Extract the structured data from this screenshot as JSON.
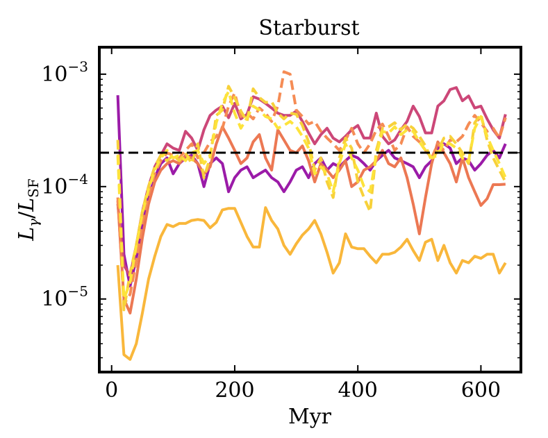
{
  "chart_data": {
    "type": "line",
    "title": "Starburst",
    "xlabel": "Myr",
    "ylabel": "L_γ/L_SF",
    "ylabel_main": "L",
    "ylabel_sub1": "γ",
    "ylabel_sub2": "SF",
    "xlim": [
      -20,
      665
    ],
    "ylim_log10": [
      -5.65,
      -2.76
    ],
    "xscale": "linear",
    "yscale": "log",
    "x_ticks": [
      0,
      200,
      400,
      600
    ],
    "x_tick_labels": [
      "0",
      "200",
      "400",
      "600"
    ],
    "y_ticks_log10": [
      -5,
      -4,
      -3
    ],
    "y_tick_labels": [
      {
        "base": "10",
        "exp": "−5"
      },
      {
        "base": "10",
        "exp": "−4"
      },
      {
        "base": "10",
        "exp": "−3"
      }
    ],
    "reference_line": {
      "y": 0.0002,
      "style": "dashed",
      "color": "#000000"
    },
    "series": [
      {
        "name": "purple-solid",
        "color": "#9b1ba8",
        "dash": false,
        "x": [
          10,
          20,
          30,
          40,
          50,
          60,
          70,
          80,
          90,
          100,
          110,
          120,
          130,
          140,
          150,
          160,
          170,
          180,
          190,
          200,
          210,
          220,
          230,
          240,
          250,
          260,
          270,
          280,
          290,
          300,
          310,
          320,
          330,
          340,
          350,
          360,
          370,
          380,
          390,
          400,
          410,
          420,
          430,
          440,
          450,
          460,
          470,
          480,
          490,
          500,
          510,
          520,
          530,
          540,
          550,
          560,
          570,
          580,
          590,
          600,
          610,
          620,
          630,
          640
        ],
        "y": [
          0.00065,
          2.5e-05,
          1.3e-05,
          2.3e-05,
          4.5e-05,
          8e-05,
          0.00012,
          0.00016,
          0.00018,
          0.00013,
          0.00016,
          0.00018,
          0.00019,
          0.00016,
          0.0001,
          0.00016,
          0.00018,
          0.00016,
          9e-05,
          0.00012,
          0.00014,
          0.00015,
          0.00012,
          0.00013,
          0.00014,
          0.00012,
          0.00011,
          9e-05,
          0.00011,
          0.00014,
          0.00015,
          0.00012,
          0.00016,
          0.00018,
          0.00014,
          0.00016,
          0.00015,
          0.00017,
          0.00019,
          0.00018,
          0.00016,
          0.00014,
          0.00017,
          0.00019,
          0.00021,
          0.00018,
          0.00017,
          0.00016,
          0.00015,
          0.00012,
          0.00015,
          0.00017,
          0.00022,
          0.00024,
          0.00022,
          0.00016,
          0.00018,
          0.00017,
          0.00014,
          0.00016,
          0.00019,
          0.00021,
          0.00018,
          0.00024
        ]
      },
      {
        "name": "magenta-solid",
        "color": "#cc4778",
        "dash": false,
        "x": [
          10,
          20,
          30,
          40,
          50,
          60,
          70,
          80,
          90,
          100,
          110,
          120,
          130,
          140,
          150,
          160,
          170,
          180,
          190,
          200,
          210,
          220,
          230,
          240,
          250,
          260,
          270,
          280,
          290,
          300,
          310,
          320,
          330,
          340,
          350,
          360,
          370,
          380,
          390,
          400,
          410,
          420,
          430,
          440,
          450,
          460,
          470,
          480,
          490,
          500,
          510,
          520,
          530,
          540,
          550,
          560,
          570,
          580,
          590,
          600,
          610,
          620,
          630,
          640
        ],
        "y": [
          7e-05,
          2e-05,
          1.6e-05,
          3e-05,
          6e-05,
          0.0001,
          0.00015,
          0.00019,
          0.00024,
          0.00022,
          0.00021,
          0.00031,
          0.00027,
          0.00021,
          0.00032,
          0.00043,
          0.00048,
          0.00052,
          0.00041,
          0.00055,
          0.0004,
          0.00044,
          0.00063,
          0.0006,
          0.00055,
          0.0005,
          0.00045,
          0.00043,
          0.00043,
          0.00047,
          0.00038,
          0.0003,
          0.00024,
          0.00029,
          0.00033,
          0.00027,
          0.00025,
          0.00028,
          0.00032,
          0.00035,
          0.00027,
          0.00027,
          0.00045,
          0.00028,
          0.00024,
          0.00026,
          0.00032,
          0.00038,
          0.00052,
          0.00042,
          0.0003,
          0.0003,
          0.00052,
          0.00058,
          0.00073,
          0.00076,
          0.00058,
          0.00064,
          0.0005,
          0.00052,
          0.0004,
          0.00032,
          0.00027,
          0.00044
        ]
      },
      {
        "name": "orange-solid",
        "color": "#ec7853",
        "dash": false,
        "x": [
          10,
          20,
          30,
          40,
          50,
          60,
          70,
          80,
          90,
          100,
          110,
          120,
          130,
          140,
          150,
          160,
          170,
          180,
          190,
          200,
          210,
          220,
          230,
          240,
          250,
          260,
          270,
          280,
          290,
          300,
          310,
          320,
          330,
          340,
          350,
          360,
          370,
          380,
          390,
          400,
          410,
          420,
          430,
          440,
          450,
          460,
          470,
          480,
          490,
          500,
          510,
          520,
          530,
          540,
          550,
          560,
          570,
          580,
          590,
          600,
          610,
          620,
          630,
          640
        ],
        "y": [
          7.5e-05,
          1e-05,
          7.5e-06,
          1.5e-05,
          3.5e-05,
          7e-05,
          0.00011,
          0.00014,
          0.00016,
          0.00017,
          0.00016,
          0.00019,
          0.00018,
          0.00016,
          0.00013,
          0.00015,
          0.00024,
          0.00034,
          0.00027,
          0.00021,
          0.00016,
          0.00018,
          0.00025,
          0.00029,
          0.00018,
          0.00014,
          0.00032,
          0.00026,
          0.00021,
          0.0002,
          0.00023,
          0.00017,
          0.00011,
          0.00016,
          0.00014,
          0.00012,
          0.00014,
          0.00017,
          0.0001,
          0.00011,
          0.00014,
          0.00015,
          0.00017,
          0.00021,
          0.00016,
          0.00015,
          0.00018,
          0.00012,
          7e-05,
          3.8e-05,
          8e-05,
          0.00016,
          0.00025,
          0.0002,
          0.00016,
          0.00011,
          0.00018,
          0.00012,
          9e-05,
          6.8e-05,
          7.8e-05,
          0.000104,
          0.000104,
          0.000105
        ]
      },
      {
        "name": "orange-dashed",
        "color": "#f58c55",
        "dash": true,
        "x": [
          10,
          20,
          30,
          40,
          50,
          60,
          70,
          80,
          90,
          100,
          110,
          120,
          130,
          140,
          150,
          160,
          170,
          180,
          190,
          200,
          210,
          220,
          230,
          240,
          250,
          260,
          270,
          280,
          290,
          300,
          310,
          320,
          330,
          340,
          350,
          360,
          370,
          380,
          390,
          400,
          410,
          420,
          430,
          440,
          450,
          460,
          470,
          480,
          490,
          500,
          510,
          520,
          530,
          540,
          550,
          560,
          570,
          580,
          590,
          600,
          610,
          620,
          630,
          640
        ],
        "y": [
          8e-05,
          9e-06,
          1.1e-05,
          2.2e-05,
          4.8e-05,
          8.5e-05,
          0.00013,
          0.00017,
          0.0002,
          0.00019,
          0.00018,
          0.00021,
          0.00024,
          0.00018,
          0.0002,
          0.00025,
          0.00028,
          0.00033,
          0.00052,
          0.00068,
          0.00042,
          0.00045,
          0.0004,
          0.0005,
          0.00045,
          0.00038,
          0.00052,
          0.00105,
          0.001,
          0.00048,
          0.00042,
          0.00036,
          0.00038,
          0.00031,
          0.00027,
          0.00024,
          0.00021,
          0.00026,
          0.00033,
          0.00024,
          0.0002,
          0.00024,
          0.00032,
          0.00036,
          0.00028,
          0.00021,
          0.00024,
          0.00034,
          0.00028,
          0.00025,
          0.00021,
          0.00018,
          0.00024,
          0.00021,
          0.00026,
          0.00025,
          0.00028,
          0.00036,
          0.00043,
          0.00037,
          0.00031,
          0.00033,
          0.00027,
          0.00041
        ]
      },
      {
        "name": "gold-solid",
        "color": "#f9b73b",
        "dash": false,
        "x": [
          10,
          20,
          30,
          40,
          50,
          60,
          70,
          80,
          90,
          100,
          110,
          120,
          130,
          140,
          150,
          160,
          170,
          180,
          190,
          200,
          210,
          220,
          230,
          240,
          250,
          260,
          270,
          280,
          290,
          300,
          310,
          320,
          330,
          340,
          350,
          360,
          370,
          380,
          390,
          400,
          410,
          420,
          430,
          440,
          450,
          460,
          470,
          480,
          490,
          500,
          510,
          520,
          530,
          540,
          550,
          560,
          570,
          580,
          590,
          600,
          610,
          620,
          630,
          640
        ],
        "y": [
          2e-05,
          3.2e-06,
          2.9e-06,
          4e-06,
          7.5e-06,
          1.5e-05,
          2.4e-05,
          3.6e-05,
          4.6e-05,
          4.4e-05,
          4.7e-05,
          4.7e-05,
          5e-05,
          5.1e-05,
          5e-05,
          4.3e-05,
          4.8e-05,
          6.2e-05,
          6.4e-05,
          6.4e-05,
          4.8e-05,
          3.6e-05,
          2.9e-05,
          2.9e-05,
          6.5e-05,
          5e-05,
          4.2e-05,
          3e-05,
          2.5e-05,
          3.1e-05,
          3.7e-05,
          4.2e-05,
          5e-05,
          3.8e-05,
          2.6e-05,
          1.7e-05,
          2.1e-05,
          3.8e-05,
          2.9e-05,
          2.8e-05,
          2.8e-05,
          2.4e-05,
          2.1e-05,
          2.5e-05,
          2.5e-05,
          2.6e-05,
          2.9e-05,
          3.4e-05,
          2.7e-05,
          2.2e-05,
          3.2e-05,
          3.4e-05,
          2.2e-05,
          3e-05,
          2.1e-05,
          1.7e-05,
          2.2e-05,
          2.1e-05,
          2.4e-05,
          2.3e-05,
          2.5e-05,
          2.5e-05,
          1.7e-05,
          2.1e-05
        ]
      },
      {
        "name": "yellow-dashed",
        "color": "#f7d13a",
        "dash": true,
        "x": [
          10,
          20,
          30,
          40,
          50,
          60,
          70,
          80,
          90,
          100,
          110,
          120,
          130,
          140,
          150,
          160,
          170,
          180,
          190,
          200,
          210,
          220,
          230,
          240,
          250,
          260,
          270,
          280,
          290,
          300,
          310,
          320,
          330,
          340,
          350,
          360,
          370,
          380,
          390,
          400,
          410,
          420,
          430,
          440,
          450,
          460,
          470,
          480,
          490,
          500,
          510,
          520,
          530,
          540,
          550,
          560,
          570,
          580,
          590,
          600,
          610,
          620,
          630,
          640
        ],
        "y": [
          0.00026,
          8e-06,
          1.7e-05,
          3e-05,
          6e-05,
          0.0001,
          0.00015,
          0.00019,
          0.00017,
          0.00019,
          0.00017,
          0.0002,
          0.00016,
          0.00024,
          0.00012,
          0.00018,
          0.00043,
          0.00048,
          0.00078,
          0.00062,
          0.00047,
          0.00038,
          0.00074,
          0.00062,
          0.00056,
          0.00057,
          0.00045,
          0.0004,
          0.00045,
          0.00044,
          0.00035,
          0.00025,
          0.00014,
          0.00018,
          0.00011,
          8e-05,
          0.00018,
          0.00027,
          0.00022,
          0.00011,
          8e-05,
          6e-05,
          0.00021,
          0.00033,
          0.00034,
          0.00037,
          0.00032,
          0.00036,
          0.00033,
          0.00028,
          0.00023,
          0.00017,
          0.00021,
          0.00027,
          0.00028,
          0.00024,
          0.0002,
          0.00016,
          0.00037,
          0.00044,
          0.00026,
          0.00018,
          0.00014,
          0.00011
        ]
      },
      {
        "name": "yellow-dashed-2",
        "color": "#fde33b",
        "dash": true,
        "x": [
          10,
          20,
          30,
          40,
          50,
          60,
          70,
          80,
          90,
          100,
          110,
          120,
          130,
          140,
          150,
          160,
          170,
          180,
          190,
          200,
          210,
          220,
          230,
          240,
          250,
          260,
          270,
          280,
          290,
          300,
          310,
          320,
          330,
          340,
          350,
          360,
          370,
          380,
          390,
          400,
          410,
          420,
          430,
          440,
          450,
          460,
          470,
          480,
          490,
          500,
          510,
          520,
          530,
          540,
          550,
          560,
          570,
          580,
          590,
          600,
          610,
          620,
          630,
          640
        ],
        "y": [
          0.00019,
          1e-05,
          1.4e-05,
          3e-05,
          5.8e-05,
          9.5e-05,
          0.00014,
          0.00018,
          0.00021,
          0.00018,
          0.00019,
          0.00017,
          0.0002,
          0.00021,
          0.00016,
          0.00019,
          0.00037,
          0.00055,
          0.0007,
          0.00045,
          0.00033,
          0.00041,
          0.00052,
          0.00048,
          0.00042,
          0.0004,
          0.00033,
          0.00035,
          0.00038,
          0.00034,
          0.00028,
          0.00022,
          0.00013,
          0.00015,
          0.00013,
          9e-05,
          0.00016,
          0.00024,
          0.00018,
          0.00014,
          0.0001,
          9e-05,
          0.00019,
          0.00031,
          0.0003,
          0.00034,
          0.00029,
          0.00032,
          0.00031,
          0.00025,
          0.00021,
          0.00018,
          0.00019,
          0.00025,
          0.00024,
          0.00022,
          0.00018,
          0.00017,
          0.00033,
          0.00042,
          0.00028,
          0.00021,
          0.00016,
          0.00012
        ]
      }
    ]
  }
}
